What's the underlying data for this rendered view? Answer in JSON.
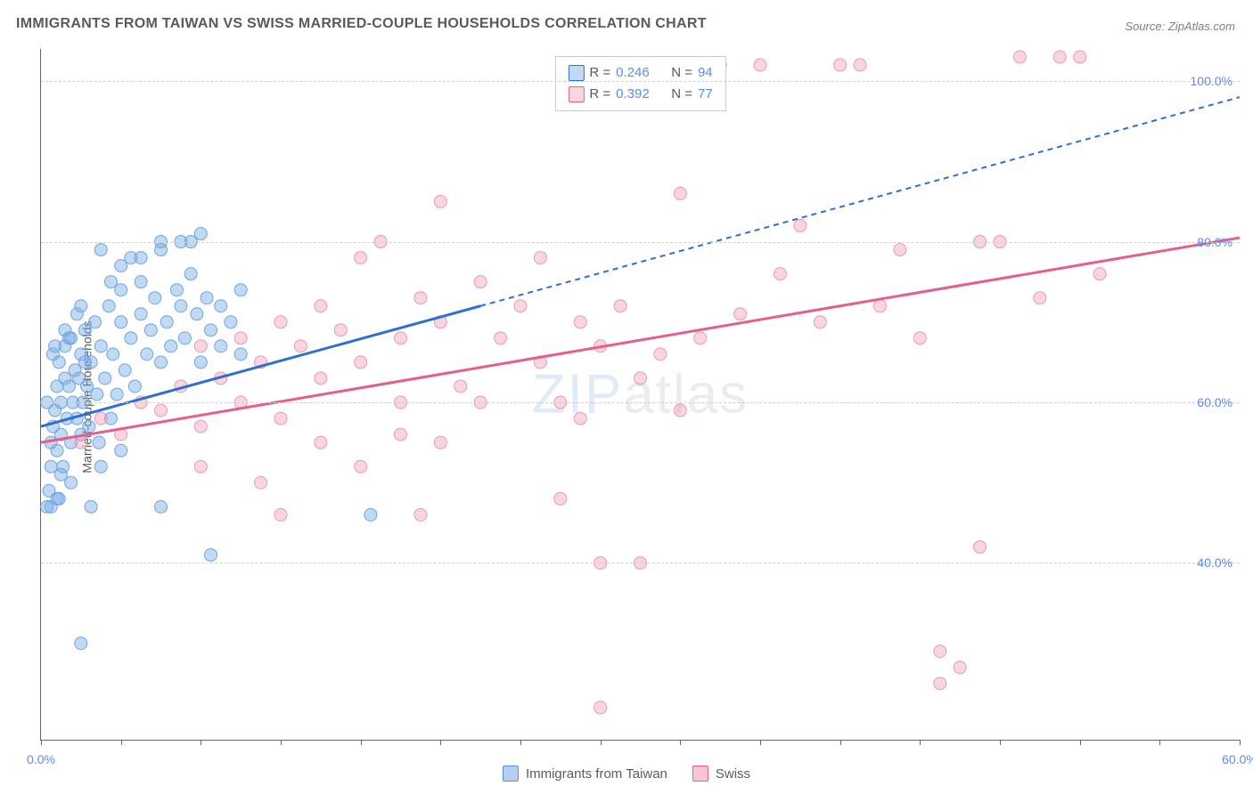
{
  "title": "IMMIGRANTS FROM TAIWAN VS SWISS MARRIED-COUPLE HOUSEHOLDS CORRELATION CHART",
  "source_label": "Source:",
  "source_value": "ZipAtlas.com",
  "ylabel": "Married-couple Households",
  "watermark": {
    "zip": "ZIP",
    "atlas": "atlas"
  },
  "chart": {
    "type": "scatter",
    "xlim": [
      0,
      60
    ],
    "ylim": [
      18,
      104
    ],
    "x_ticks_minor": [
      0,
      4,
      8,
      12,
      16,
      20,
      24,
      28,
      32,
      36,
      40,
      44,
      48,
      52,
      56,
      60
    ],
    "x_ticks_labeled": [
      {
        "v": 0,
        "label": "0.0%"
      },
      {
        "v": 60,
        "label": "60.0%"
      }
    ],
    "y_gridlines": [
      40,
      60,
      80,
      100
    ],
    "y_tick_labels": [
      {
        "v": 40,
        "label": "40.0%"
      },
      {
        "v": 60,
        "label": "60.0%"
      },
      {
        "v": 80,
        "label": "80.0%"
      },
      {
        "v": 100,
        "label": "100.0%"
      }
    ],
    "grid_color": "#d0d0d0",
    "fontsize_axis": 14,
    "axis_label_color": "#5b8def",
    "series": [
      {
        "name": "Immigrants from Taiwan",
        "fill": "rgba(120,170,230,0.45)",
        "stroke": "#6fa5e0",
        "line_color": "#2e6fd1",
        "r_value": "0.246",
        "n_value": "94",
        "marker_radius": 7,
        "line_width": 3,
        "trend": {
          "x1": 0,
          "y1": 57,
          "x2": 22,
          "y2": 72,
          "x2_dash": 60,
          "y2_dash": 98
        },
        "points": [
          [
            0.3,
            47
          ],
          [
            0.4,
            49
          ],
          [
            0.5,
            52
          ],
          [
            0.5,
            55
          ],
          [
            0.6,
            57
          ],
          [
            0.7,
            59
          ],
          [
            0.8,
            54
          ],
          [
            0.8,
            62
          ],
          [
            0.9,
            48
          ],
          [
            0.9,
            65
          ],
          [
            1.0,
            56
          ],
          [
            1.0,
            60
          ],
          [
            1.1,
            52
          ],
          [
            1.2,
            63
          ],
          [
            1.2,
            67
          ],
          [
            1.3,
            58
          ],
          [
            1.4,
            62
          ],
          [
            1.5,
            55
          ],
          [
            1.5,
            68
          ],
          [
            1.6,
            60
          ],
          [
            1.7,
            64
          ],
          [
            1.8,
            58
          ],
          [
            1.8,
            71
          ],
          [
            1.9,
            63
          ],
          [
            2.0,
            56
          ],
          [
            2.0,
            66
          ],
          [
            2.1,
            60
          ],
          [
            2.2,
            69
          ],
          [
            2.3,
            62
          ],
          [
            2.4,
            57
          ],
          [
            2.5,
            65
          ],
          [
            2.5,
            47
          ],
          [
            2.7,
            70
          ],
          [
            2.8,
            61
          ],
          [
            2.9,
            55
          ],
          [
            3.0,
            67
          ],
          [
            3.0,
            79
          ],
          [
            3.2,
            63
          ],
          [
            3.4,
            72
          ],
          [
            3.5,
            58
          ],
          [
            3.6,
            66
          ],
          [
            3.8,
            61
          ],
          [
            4.0,
            74
          ],
          [
            4.0,
            70
          ],
          [
            4.2,
            64
          ],
          [
            4.5,
            68
          ],
          [
            4.5,
            78
          ],
          [
            4.7,
            62
          ],
          [
            5.0,
            71
          ],
          [
            5.0,
            75
          ],
          [
            5.3,
            66
          ],
          [
            5.5,
            69
          ],
          [
            5.7,
            73
          ],
          [
            6.0,
            65
          ],
          [
            6.0,
            80
          ],
          [
            6.3,
            70
          ],
          [
            6.5,
            67
          ],
          [
            6.8,
            74
          ],
          [
            7.0,
            72
          ],
          [
            7.2,
            68
          ],
          [
            7.5,
            76
          ],
          [
            7.5,
            80
          ],
          [
            7.8,
            71
          ],
          [
            8.0,
            65
          ],
          [
            8.3,
            73
          ],
          [
            8.5,
            69
          ],
          [
            9.0,
            72
          ],
          [
            9.0,
            67
          ],
          [
            9.5,
            70
          ],
          [
            10.0,
            66
          ],
          [
            10.0,
            74
          ],
          [
            2.0,
            30
          ],
          [
            8.5,
            41
          ],
          [
            6.0,
            47
          ],
          [
            0.5,
            47
          ],
          [
            0.8,
            48
          ],
          [
            3.0,
            52
          ],
          [
            4.0,
            54
          ],
          [
            1.0,
            51
          ],
          [
            1.5,
            50
          ],
          [
            0.3,
            60
          ],
          [
            0.6,
            66
          ],
          [
            1.2,
            69
          ],
          [
            2.0,
            72
          ],
          [
            3.5,
            75
          ],
          [
            4.0,
            77
          ],
          [
            5.0,
            78
          ],
          [
            6.0,
            79
          ],
          [
            7.0,
            80
          ],
          [
            8.0,
            81
          ],
          [
            0.7,
            67
          ],
          [
            1.4,
            68
          ],
          [
            2.2,
            65
          ],
          [
            16.5,
            46
          ]
        ]
      },
      {
        "name": "Swiss",
        "fill": "rgba(240,150,175,0.40)",
        "stroke": "#e89ab2",
        "line_color": "#e85d8a",
        "r_value": "0.392",
        "n_value": "77",
        "marker_radius": 7,
        "line_width": 3,
        "trend": {
          "x1": 0,
          "y1": 55,
          "x2": 60,
          "y2": 80.5
        },
        "points": [
          [
            2,
            55
          ],
          [
            3,
            58
          ],
          [
            4,
            56
          ],
          [
            5,
            60
          ],
          [
            6,
            59
          ],
          [
            7,
            62
          ],
          [
            8,
            57
          ],
          [
            8,
            67
          ],
          [
            9,
            63
          ],
          [
            10,
            60
          ],
          [
            10,
            68
          ],
          [
            11,
            65
          ],
          [
            12,
            58
          ],
          [
            12,
            70
          ],
          [
            13,
            67
          ],
          [
            14,
            63
          ],
          [
            14,
            72
          ],
          [
            15,
            69
          ],
          [
            16,
            78
          ],
          [
            16,
            65
          ],
          [
            17,
            80
          ],
          [
            18,
            60
          ],
          [
            18,
            68
          ],
          [
            19,
            46
          ],
          [
            19,
            73
          ],
          [
            20,
            70
          ],
          [
            20,
            85
          ],
          [
            21,
            62
          ],
          [
            22,
            75
          ],
          [
            23,
            68
          ],
          [
            24,
            72
          ],
          [
            25,
            65
          ],
          [
            25,
            78
          ],
          [
            26,
            60
          ],
          [
            27,
            58
          ],
          [
            27,
            70
          ],
          [
            28,
            67
          ],
          [
            29,
            72
          ],
          [
            30,
            63
          ],
          [
            31,
            66
          ],
          [
            32,
            86
          ],
          [
            32,
            59
          ],
          [
            33,
            68
          ],
          [
            34,
            102
          ],
          [
            35,
            71
          ],
          [
            36,
            102
          ],
          [
            37,
            76
          ],
          [
            38,
            82
          ],
          [
            39,
            70
          ],
          [
            40,
            102
          ],
          [
            41,
            102
          ],
          [
            42,
            72
          ],
          [
            43,
            79
          ],
          [
            44,
            68
          ],
          [
            45,
            25
          ],
          [
            46,
            27
          ],
          [
            47,
            80
          ],
          [
            48,
            80
          ],
          [
            49,
            103
          ],
          [
            50,
            73
          ],
          [
            51,
            103
          ],
          [
            52,
            103
          ],
          [
            53,
            76
          ],
          [
            8,
            52
          ],
          [
            11,
            50
          ],
          [
            14,
            55
          ],
          [
            18,
            56
          ],
          [
            22,
            60
          ],
          [
            26,
            48
          ],
          [
            12,
            46
          ],
          [
            16,
            52
          ],
          [
            20,
            55
          ],
          [
            28,
            40
          ],
          [
            30,
            40
          ],
          [
            45,
            29
          ],
          [
            47,
            42
          ],
          [
            28,
            22
          ]
        ]
      }
    ]
  },
  "legend_top": {
    "r_label": "R =",
    "n_label": "N ="
  },
  "legend_bottom": [
    {
      "swatch": "blue",
      "label": "Immigrants from Taiwan"
    },
    {
      "swatch": "pink",
      "label": "Swiss"
    }
  ]
}
